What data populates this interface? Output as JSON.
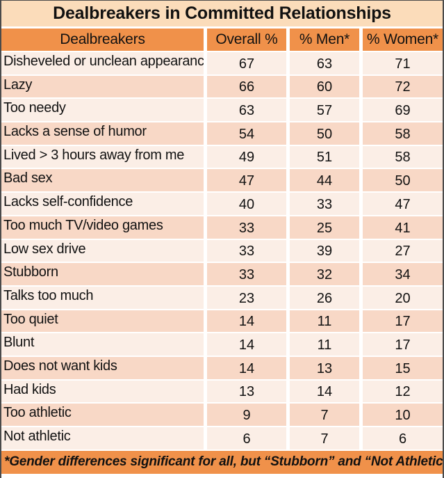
{
  "colors": {
    "orange": "#f0914a",
    "title_band": "#fbdcba",
    "row_light": "#fbeee6",
    "row_dark": "#f8d8c6",
    "border_dark": "#4a4a4a",
    "text_dark": "#111111"
  },
  "chart_data": {
    "type": "table",
    "title": "Dealbreakers in Committed Relationships",
    "columns": [
      "Dealbreakers",
      "Overall %",
      "% Men*",
      "% Women*"
    ],
    "rows": [
      [
        "Disheveled or unclean appearance",
        67,
        63,
        71
      ],
      [
        "Lazy",
        66,
        60,
        72
      ],
      [
        "Too needy",
        63,
        57,
        69
      ],
      [
        "Lacks a sense of humor",
        54,
        50,
        58
      ],
      [
        "Lived > 3 hours away from me",
        49,
        51,
        58
      ],
      [
        "Bad sex",
        47,
        44,
        50
      ],
      [
        "Lacks self-confidence",
        40,
        33,
        47
      ],
      [
        "Too much TV/video games",
        33,
        25,
        41
      ],
      [
        "Low sex drive",
        33,
        39,
        27
      ],
      [
        "Stubborn",
        33,
        32,
        34
      ],
      [
        "Talks too much",
        23,
        26,
        20
      ],
      [
        "Too quiet",
        14,
        11,
        17
      ],
      [
        "Blunt",
        14,
        11,
        17
      ],
      [
        "Does not want kids",
        14,
        13,
        15
      ],
      [
        "Had kids",
        13,
        14,
        12
      ],
      [
        "Too athletic",
        9,
        7,
        10
      ],
      [
        "Not athletic",
        6,
        7,
        6
      ]
    ],
    "footnote_text": "*Gender differences significant for all, but “Stubborn” and “Not Athletic”",
    "footnote_marker": "1",
    "layout": {
      "banded_rows": true,
      "header_position": "top",
      "footnote_position": "bottom"
    }
  }
}
